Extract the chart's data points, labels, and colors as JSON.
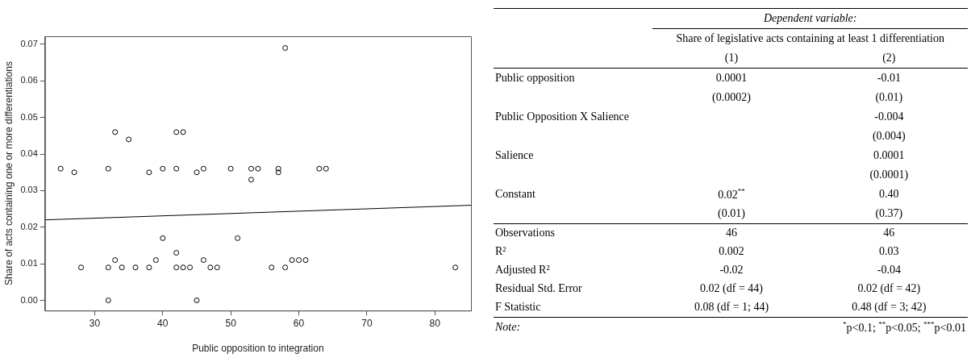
{
  "chart_data": [
    {
      "type": "scatter",
      "xlabel": "Public opposition to integration",
      "ylabel": "Share of acts containing one or more differentiations",
      "xlim": [
        22.7,
        85.3
      ],
      "ylim": [
        -0.0028,
        0.0722
      ],
      "xticks": [
        30,
        40,
        50,
        60,
        70,
        80
      ],
      "yticks": [
        {
          "value": 0,
          "label": "0.00"
        },
        0.01,
        0.02,
        0.03,
        0.04,
        0.05,
        0.06,
        0.07
      ],
      "marker": "circle",
      "series": [
        {
          "type": "scatter",
          "color": "#000000",
          "x": [
            25,
            27,
            28,
            32,
            32,
            32,
            33,
            33,
            34,
            35,
            36,
            38,
            38,
            39,
            40,
            40,
            42,
            42,
            42,
            42,
            43,
            43,
            44,
            45,
            45,
            46,
            46,
            47,
            48,
            50,
            51,
            53,
            53,
            54,
            56,
            57,
            57,
            58,
            58,
            59,
            60,
            61,
            63,
            64,
            83
          ],
          "values": [
            0.036,
            0.035,
            0.009,
            0.036,
            0.009,
            0,
            0.046,
            0.011,
            0.009,
            0.044,
            0.009,
            0.035,
            0.009,
            0.011,
            0.036,
            0.017,
            0.046,
            0.036,
            0.013,
            0.009,
            0.046,
            0.009,
            0.009,
            0.035,
            0,
            0.036,
            0.011,
            0.009,
            0.009,
            0.036,
            0.017,
            0.036,
            0.033,
            0.036,
            0.009,
            0.036,
            0.035,
            0.069,
            0.009,
            0.011,
            0.011,
            0.011,
            0.036,
            0.036,
            0.009
          ]
        },
        {
          "type": "line",
          "color": "#000000",
          "marker": "none",
          "x": [
            22.7,
            85.3
          ],
          "values": [
            0.022,
            0.026
          ]
        }
      ]
    },
    {
      "type": "other",
      "title": "Dependent variable:",
      "subtitle": "Share of legislative acts containing at least 1 differentiation",
      "categories": [
        "(1)",
        "(2)"
      ],
      "y_categories": [
        "Public opposition",
        null,
        "Public Opposition X Salience",
        null,
        "Salience",
        null,
        "Constant",
        null,
        "Observations",
        "R²",
        "Adjusted R²",
        "Residual Std. Error",
        "F Statistic"
      ],
      "cell_labels": [
        [
          "0.0001",
          "-0.01"
        ],
        [
          "(0.0002)",
          "(0.01)"
        ],
        [
          null,
          "-0.004"
        ],
        [
          null,
          "(0.004)"
        ],
        [
          null,
          "0.0001"
        ],
        [
          null,
          "(0.0001)"
        ],
        [
          "0.02$^{**}$",
          "0.40"
        ],
        [
          "(0.01)",
          "(0.37)"
        ],
        [
          "46",
          "46"
        ],
        [
          "0.002",
          "0.03"
        ],
        [
          "-0.02",
          "-0.04"
        ],
        [
          "0.02 (df = 44)",
          "0.02 (df = 42)"
        ],
        [
          "0.08 (df = 1; 44)",
          "0.48 (df = 3; 42)"
        ]
      ],
      "annotations": [
        "Note:",
        "$^{*}$p<0.1; $^{**}$p<0.05; $^{***}$p<0.01"
      ]
    }
  ]
}
